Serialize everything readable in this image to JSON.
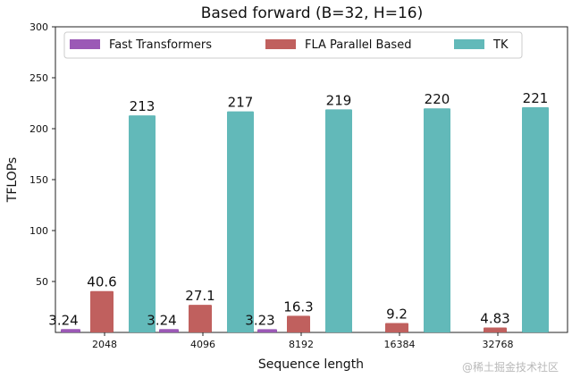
{
  "chart_data": {
    "type": "bar",
    "title": "Based forward (B=32, H=16)",
    "xlabel": "Sequence length",
    "ylabel": "TFLOPs",
    "ylim": [
      0,
      300
    ],
    "yticks": [
      "50",
      "100",
      "150",
      "200",
      "250",
      "300"
    ],
    "categories": [
      "2048",
      "4096",
      "8192",
      "16384",
      "32768"
    ],
    "legend_position": "top",
    "series": [
      {
        "name": "Fast Transformers",
        "color": "#9b59b6",
        "values": [
          3.24,
          3.24,
          3.23,
          null,
          null
        ],
        "labels": [
          "3.24",
          "3.24",
          "3.23",
          "",
          ""
        ]
      },
      {
        "name": "FLA Parallel Based",
        "color": "#c0605e",
        "values": [
          40.6,
          27.1,
          16.3,
          9.2,
          4.83
        ],
        "labels": [
          "40.6",
          "27.1",
          "16.3",
          "9.2",
          "4.83"
        ]
      },
      {
        "name": "TK",
        "color": "#62b9b9",
        "values": [
          213,
          217,
          219,
          220,
          221
        ],
        "labels": [
          "213",
          "217",
          "219",
          "220",
          "221"
        ]
      }
    ]
  },
  "watermark": "@稀土掘金技术社区"
}
